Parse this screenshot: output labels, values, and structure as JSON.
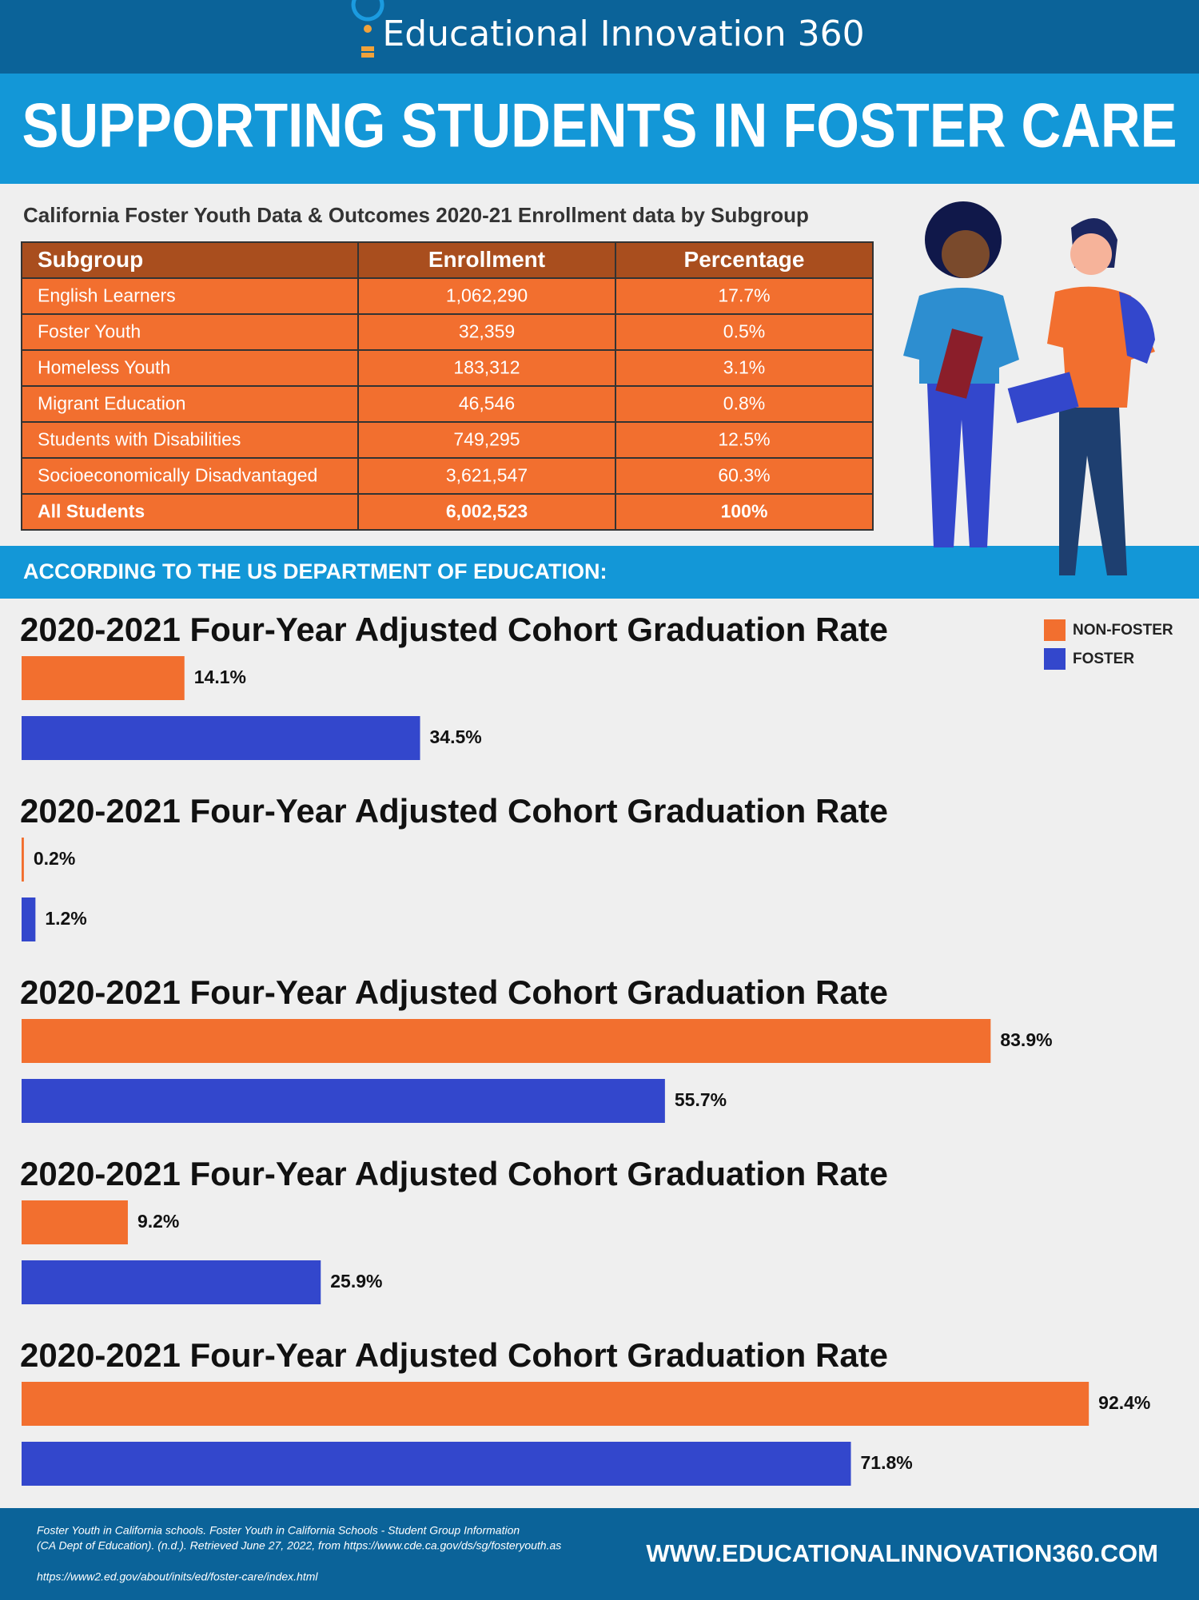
{
  "header": {
    "logo": "Educational Innovation 360"
  },
  "banner": {
    "title": "SUPPORTING STUDENTS IN FOSTER CARE"
  },
  "table": {
    "caption": "California Foster Youth Data & Outcomes 2020-21 Enrollment data by Subgroup",
    "columns": [
      "Subgroup",
      "Enrollment",
      "Percentage"
    ],
    "rows": [
      [
        "English Learners",
        "1,062,290",
        "17.7%"
      ],
      [
        "Foster Youth",
        "32,359",
        "0.5%"
      ],
      [
        "Homeless Youth",
        "183,312",
        "3.1%"
      ],
      [
        "Migrant Education",
        "46,546",
        "0.8%"
      ],
      [
        "Students with Disabilities",
        "749,295",
        "12.5%"
      ],
      [
        "Socioeconomically Disadvantaged",
        "3,621,547",
        "60.3%"
      ],
      [
        "All Students",
        "6,002,523",
        "100%"
      ]
    ]
  },
  "section_heading": "ACCORDING TO THE US DEPARTMENT OF EDUCATION:",
  "legend": [
    {
      "label": "NON-FOSTER",
      "color": "#f26f2f"
    },
    {
      "label": "FOSTER",
      "color": "#3347cc"
    }
  ],
  "chart_data": [
    {
      "type": "bar",
      "orientation": "horizontal",
      "title": "2020-2021 Four-Year Adjusted Cohort Graduation Rate",
      "values": [
        14.1,
        34.5
      ],
      "value_labels": [
        "14.1%",
        "34.5%"
      ],
      "xlim": [
        0,
        100
      ]
    },
    {
      "type": "bar",
      "orientation": "horizontal",
      "title": "2020-2021 Four-Year Adjusted Cohort Graduation Rate",
      "values": [
        0.2,
        1.2
      ],
      "value_labels": [
        "0.2%",
        "1.2%"
      ],
      "xlim": [
        0,
        100
      ]
    },
    {
      "type": "bar",
      "orientation": "horizontal",
      "title": "2020-2021 Four-Year Adjusted Cohort Graduation Rate",
      "values": [
        83.9,
        55.7
      ],
      "value_labels": [
        "83.9%",
        "55.7%"
      ],
      "xlim": [
        0,
        100
      ]
    },
    {
      "type": "bar",
      "orientation": "horizontal",
      "title": "2020-2021 Four-Year Adjusted Cohort Graduation Rate",
      "values": [
        9.2,
        25.9
      ],
      "value_labels": [
        "9.2%",
        "25.9%"
      ],
      "xlim": [
        0,
        100
      ]
    },
    {
      "type": "bar",
      "orientation": "horizontal",
      "title": "2020-2021 Four-Year Adjusted Cohort Graduation Rate",
      "values": [
        92.4,
        71.8
      ],
      "value_labels": [
        "92.4%",
        "71.8%"
      ],
      "xlim": [
        0,
        100
      ]
    }
  ],
  "footer": {
    "citations": [
      "Foster Youth in California schools. Foster Youth in California Schools - Student Group Information",
      "(CA Dept of Education). (n.d.). Retrieved June 27, 2022, from https://www.cde.ca.gov/ds/sg/fosteryouth.as",
      "https://www2.ed.gov/about/inits/ed/foster-care/index.html"
    ],
    "website": "WWW.EDUCATIONALINNOVATION360.COM"
  }
}
